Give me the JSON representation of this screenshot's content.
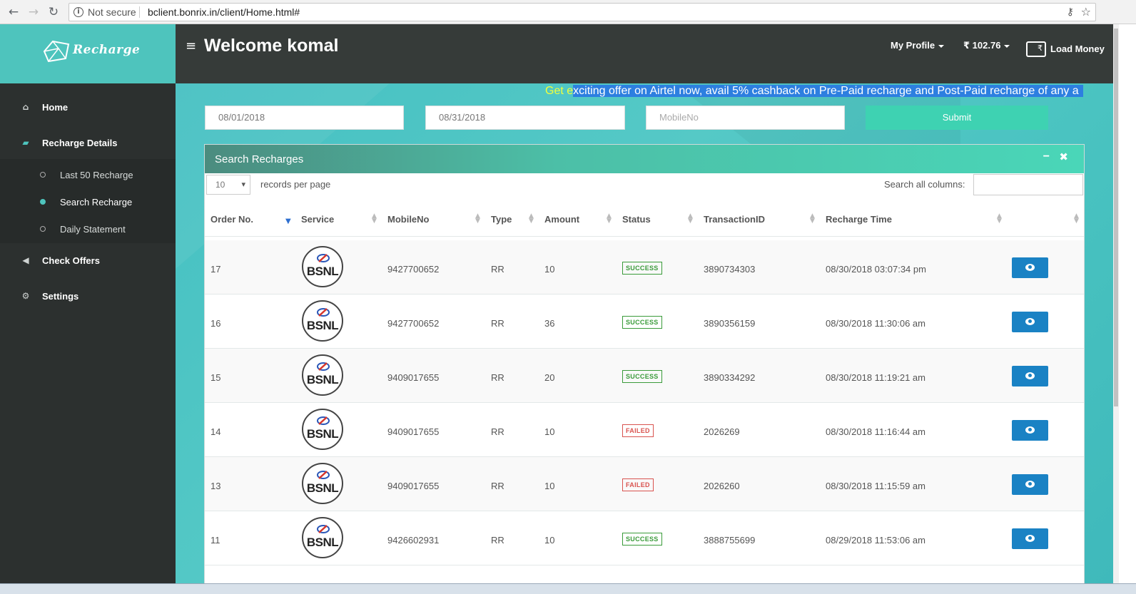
{
  "browser": {
    "security": "Not secure",
    "url": "bclient.bonrix.in/client/Home.html#"
  },
  "app": {
    "logo_text": "Recharge",
    "welcome": "Welcome komal",
    "profile_label": "My Profile",
    "balance": "₹ 102.76",
    "load_money": "Load Money"
  },
  "sidebar": {
    "home": "Home",
    "recharge_details": "Recharge Details",
    "sub": {
      "last50": "Last 50 Recharge",
      "search": "Search Recharge",
      "daily": "Daily Statement"
    },
    "check_offers": "Check Offers",
    "settings": "Settings"
  },
  "marquee": {
    "part1": "Get e",
    "part2": "xciting offer on Airtel now, avail 5% cashback on Pre-Paid recharge and Post-Paid recharge of any a"
  },
  "filter": {
    "from_date": "08/01/2018",
    "to_date": "08/31/2018",
    "mobile_placeholder": "MobileNo",
    "submit": "Submit"
  },
  "panel": {
    "title": "Search Recharges",
    "min_symbol": "−",
    "close_symbol": "✖",
    "records_value": "10",
    "records_label": "records per page",
    "search_label": "Search all columns:"
  },
  "columns": {
    "order": "Order No.",
    "service": "Service",
    "mobile": "MobileNo",
    "type": "Type",
    "amount": "Amount",
    "status": "Status",
    "txn": "TransactionID",
    "time": "Recharge Time"
  },
  "rows": [
    {
      "order": "17",
      "service": "BSNL",
      "mobile": "9427700652",
      "type": "RR",
      "amount": "10",
      "status": "SUCCESS",
      "txn": "3890734303",
      "time": "08/30/2018 03:07:34 pm"
    },
    {
      "order": "16",
      "service": "BSNL",
      "mobile": "9427700652",
      "type": "RR",
      "amount": "36",
      "status": "SUCCESS",
      "txn": "3890356159",
      "time": "08/30/2018 11:30:06 am"
    },
    {
      "order": "15",
      "service": "BSNL",
      "mobile": "9409017655",
      "type": "RR",
      "amount": "20",
      "status": "SUCCESS",
      "txn": "3890334292",
      "time": "08/30/2018 11:19:21 am"
    },
    {
      "order": "14",
      "service": "BSNL",
      "mobile": "9409017655",
      "type": "RR",
      "amount": "10",
      "status": "FAILED",
      "txn": "2026269",
      "time": "08/30/2018 11:16:44 am"
    },
    {
      "order": "13",
      "service": "BSNL",
      "mobile": "9409017655",
      "type": "RR",
      "amount": "10",
      "status": "FAILED",
      "txn": "2026260",
      "time": "08/30/2018 11:15:59 am"
    },
    {
      "order": "11",
      "service": "BSNL",
      "mobile": "9426602931",
      "type": "RR",
      "amount": "10",
      "status": "SUCCESS",
      "txn": "3888755699",
      "time": "08/29/2018 11:53:06 am"
    }
  ],
  "colors": {
    "teal": "#4ec4bd",
    "header_dark": "#363b39",
    "sidebar_dark": "#2c302f",
    "submit": "#3ed2b2",
    "view_button": "#1a82c4",
    "success": "#3a9b3a",
    "failed": "#d9534f"
  },
  "icons": {
    "back": "back-arrow-icon",
    "forward": "forward-arrow-icon",
    "reload": "reload-icon",
    "home": "home-icon",
    "recharge": "book-icon",
    "offers": "megaphone-icon",
    "settings": "gears-icon",
    "wallet": "wallet-icon",
    "view": "eye-icon"
  }
}
